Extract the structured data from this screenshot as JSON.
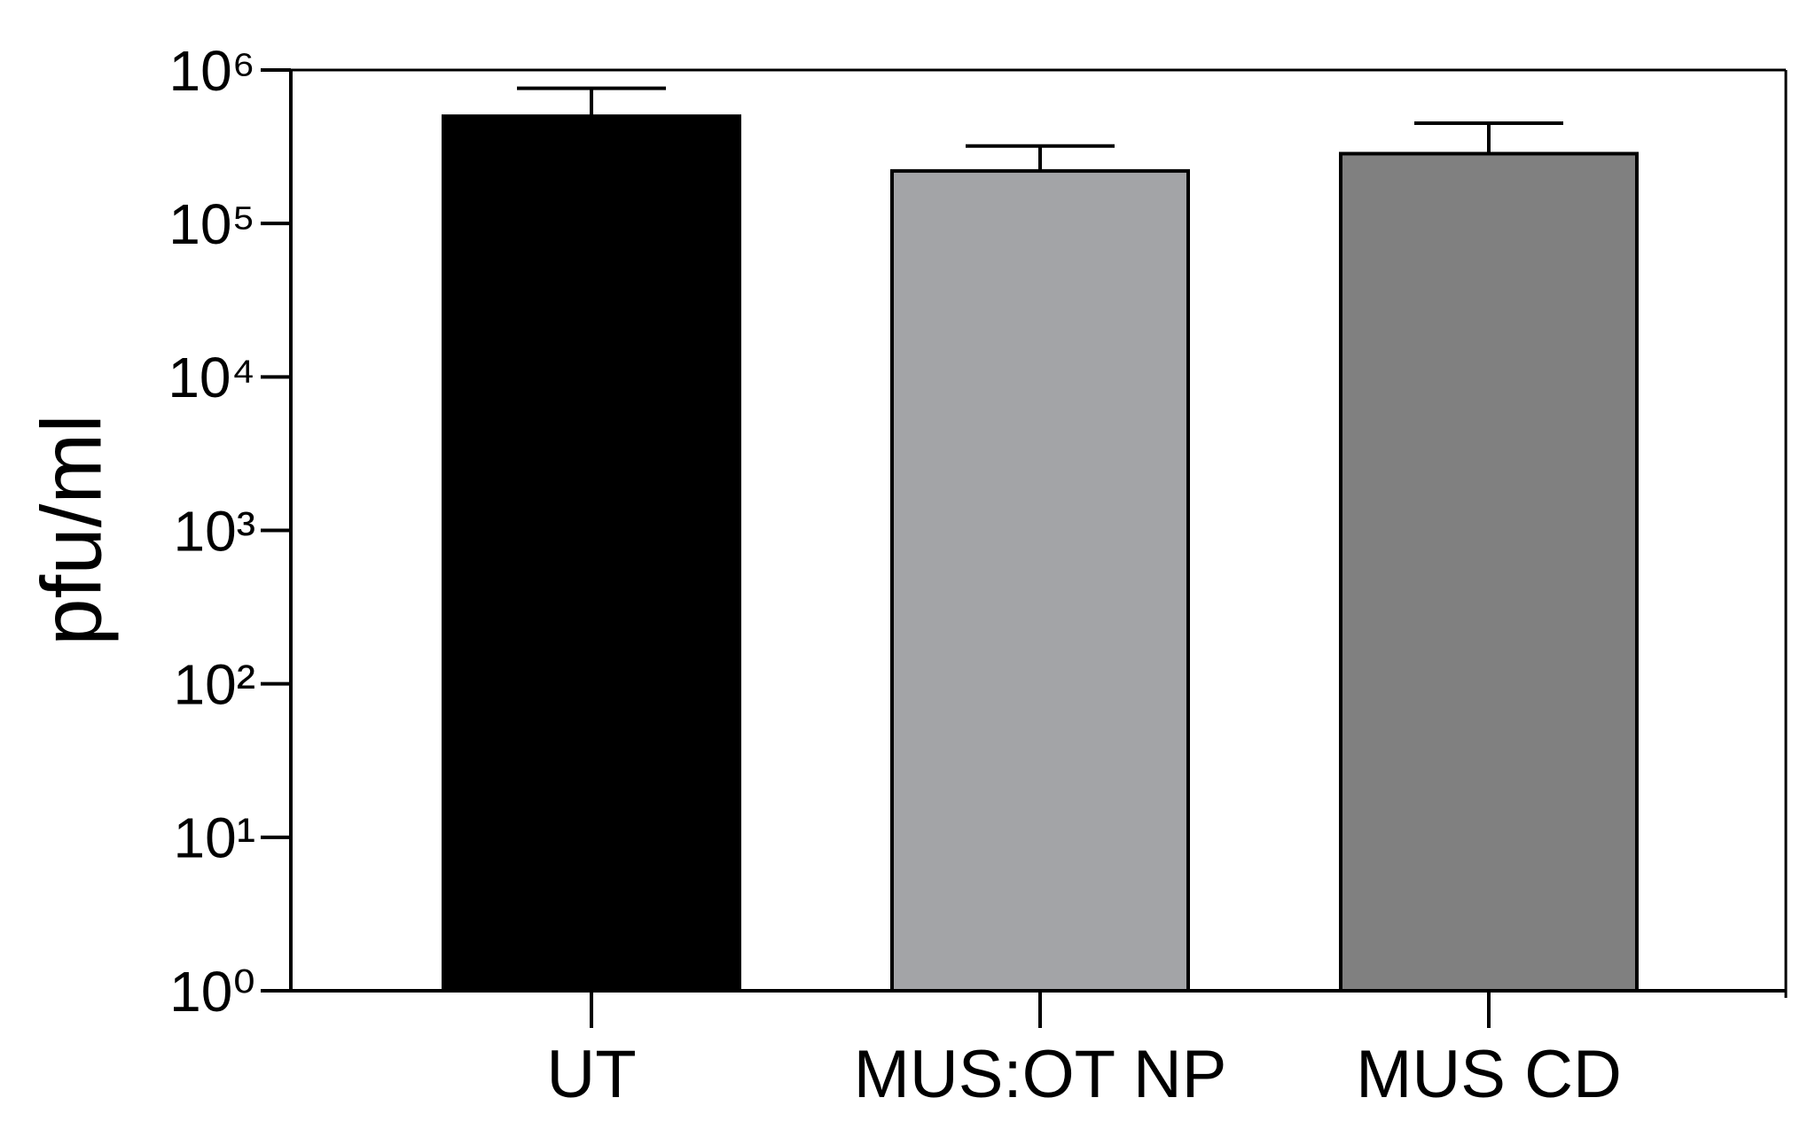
{
  "chart_data": {
    "type": "bar",
    "ylabel": "pfu/ml",
    "categories": [
      "UT",
      "MUS:OT NP",
      "MUS CD"
    ],
    "values": [
      500000,
      220000,
      285000
    ],
    "errors": [
      260000,
      100000,
      165000
    ],
    "colors": [
      "#000000",
      "#a3a4a7",
      "#808080"
    ],
    "log_scale": true,
    "ylim": [
      1,
      1000000
    ],
    "yticks": [
      {
        "value": 1,
        "label": "10⁰"
      },
      {
        "value": 10,
        "label": "10¹"
      },
      {
        "value": 100,
        "label": "10²"
      },
      {
        "value": 1000,
        "label": "10³"
      },
      {
        "value": 10000,
        "label": "10⁴"
      },
      {
        "value": 100000,
        "label": "10⁵"
      },
      {
        "value": 1000000,
        "label": "10⁶"
      }
    ]
  }
}
